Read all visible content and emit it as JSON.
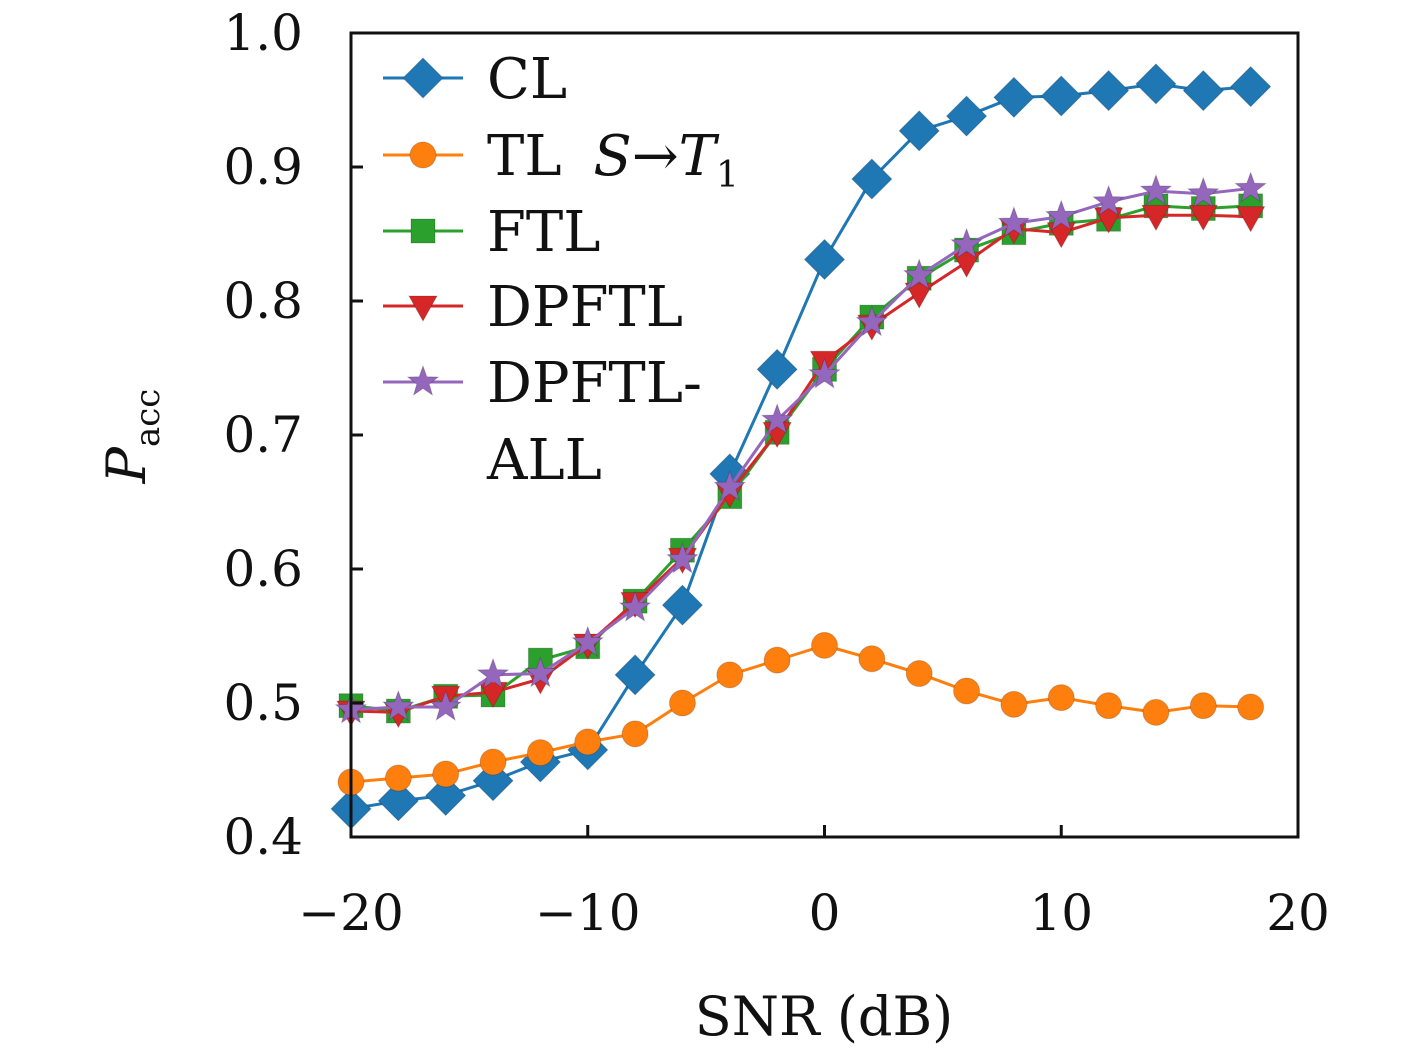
{
  "chart_data": {
    "type": "line",
    "xlabel": "SNR (dB)",
    "ylabel": "P",
    "ylabel_subscript": "acc",
    "xlim": [
      -20,
      20
    ],
    "ylim": [
      0.4,
      1.0
    ],
    "xticks": [
      -20,
      -10,
      0,
      10,
      20
    ],
    "xtick_labels": [
      "−20",
      "−10",
      "0",
      "10",
      "20"
    ],
    "yticks": [
      0.4,
      0.5,
      0.6,
      0.7,
      0.8,
      0.9,
      1.0
    ],
    "ytick_labels": [
      "0.4",
      "0.5",
      "0.6",
      "0.7",
      "0.8",
      "0.9",
      "1.0"
    ],
    "grid": false,
    "legend_position": "top-left",
    "x": [
      -20,
      -18,
      -16,
      -14,
      -12,
      -10,
      -8,
      -6,
      -4,
      -2,
      0,
      2,
      4,
      6,
      8,
      10,
      12,
      14,
      16,
      18
    ],
    "series": [
      {
        "name": "CL",
        "color": "#1f77b4",
        "marker": "diamond",
        "values": [
          0.421,
          0.427,
          0.431,
          0.442,
          0.456,
          0.465,
          0.521,
          0.573,
          0.671,
          0.749,
          0.831,
          0.891,
          0.927,
          0.938,
          0.952,
          0.953,
          0.957,
          0.962,
          0.957,
          0.96
        ]
      },
      {
        "name": "TL S→T1",
        "color": "#ff7f0e",
        "marker": "circle",
        "values": [
          0.441,
          0.444,
          0.447,
          0.456,
          0.463,
          0.471,
          0.477,
          0.5,
          0.521,
          0.532,
          0.543,
          0.533,
          0.522,
          0.509,
          0.499,
          0.504,
          0.498,
          0.493,
          0.498,
          0.497
        ]
      },
      {
        "name": "FTL",
        "color": "#2ca02c",
        "marker": "square",
        "values": [
          0.498,
          0.494,
          0.505,
          0.506,
          0.532,
          0.542,
          0.576,
          0.614,
          0.654,
          0.702,
          0.749,
          0.788,
          0.817,
          0.838,
          0.851,
          0.858,
          0.861,
          0.871,
          0.869,
          0.871
        ]
      },
      {
        "name": "DPFTL",
        "color": "#d62728",
        "marker": "triangle-down",
        "values": [
          0.494,
          0.493,
          0.505,
          0.508,
          0.518,
          0.544,
          0.575,
          0.608,
          0.657,
          0.702,
          0.755,
          0.782,
          0.806,
          0.829,
          0.854,
          0.851,
          0.862,
          0.864,
          0.864,
          0.863
        ]
      },
      {
        "name": "DPFTL-ALL",
        "color": "#9467bd",
        "marker": "star",
        "values": [
          0.495,
          0.497,
          0.497,
          0.521,
          0.522,
          0.545,
          0.571,
          0.607,
          0.661,
          0.711,
          0.745,
          0.784,
          0.819,
          0.842,
          0.858,
          0.863,
          0.874,
          0.882,
          0.88,
          0.884
        ]
      }
    ],
    "legend_entries": [
      {
        "series": "CL",
        "lines": [
          "CL"
        ]
      },
      {
        "series": "TL S→T1",
        "lines": [
          "TL"
        ],
        "math": {
          "from": "S",
          "arrow": "→",
          "to": "T",
          "sub": "1"
        }
      },
      {
        "series": "FTL",
        "lines": [
          "FTL"
        ]
      },
      {
        "series": "DPFTL",
        "lines": [
          "DPFTL"
        ]
      },
      {
        "series": "DPFTL-ALL",
        "lines": [
          "DPFTL-",
          "ALL"
        ]
      }
    ]
  }
}
